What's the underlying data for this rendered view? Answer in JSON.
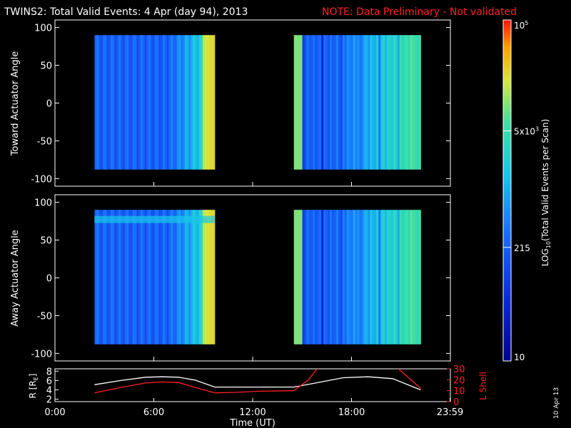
{
  "header": {
    "title": "TWINS2: Total Valid Events:  4 Apr (day  94), 2013",
    "note": "NOTE: Data Preliminary - Not validated",
    "note_color": "#ff2020"
  },
  "colorbar": {
    "label_main": "LOG",
    "label_sub": "10",
    "label_rest": "(Total Valid Events per Scan)",
    "ticks": [
      {
        "text": "10",
        "value": 10
      },
      {
        "text": "215",
        "value": 215
      },
      {
        "text": "5x10",
        "sup": "3",
        "value": 5000
      },
      {
        "text": "10",
        "sup": "5",
        "value": 100000
      }
    ],
    "range": [
      10,
      100000
    ],
    "scale": "log"
  },
  "chart_data": [
    {
      "type": "heatmap",
      "name": "toward",
      "ylabel": "Toward Actuator Angle",
      "ylim": [
        -110,
        110
      ],
      "yticks": [
        -100,
        -50,
        0,
        50,
        100
      ],
      "xlim_hours": [
        0,
        24
      ],
      "data_blocks_hours": [
        [
          2.4,
          9.7
        ],
        [
          14.5,
          22.2
        ]
      ],
      "angle_range": [
        -88,
        90
      ],
      "color_scale": "log",
      "color_range": [
        10,
        100000
      ]
    },
    {
      "type": "heatmap",
      "name": "away",
      "ylabel": "Away Actuator Angle",
      "ylim": [
        -110,
        110
      ],
      "yticks": [
        -100,
        -50,
        0,
        50,
        100
      ],
      "xlim_hours": [
        0,
        24
      ],
      "data_blocks_hours": [
        [
          2.4,
          9.7
        ],
        [
          14.5,
          22.2
        ]
      ],
      "angle_range": [
        -88,
        90
      ],
      "color_scale": "log",
      "color_range": [
        10,
        100000
      ]
    },
    {
      "type": "line",
      "name": "orbit",
      "xlabel": "Time (UT)",
      "xticks": [
        {
          "label": "0:00",
          "hour": 0
        },
        {
          "label": "6:00",
          "hour": 6
        },
        {
          "label": "12:00",
          "hour": 12
        },
        {
          "label": "18:00",
          "hour": 18
        },
        {
          "label": "23:59",
          "hour": 23.98
        }
      ],
      "y_left_label_main": "R [R",
      "y_left_label_sub": "E",
      "y_left_label_end": "]",
      "y_left_ticks": [
        2,
        4,
        6,
        8
      ],
      "y_left_lim": [
        1.5,
        8.5
      ],
      "y_right_label": "L Shell",
      "y_right_ticks": [
        0,
        10,
        20,
        30
      ],
      "y_right_lim": [
        0,
        30
      ],
      "series": [
        {
          "axis": "left",
          "color": "#ffffff",
          "x": [
            2.4,
            4,
            5.5,
            6.5,
            7.5,
            8.5,
            9.7,
            11,
            12.5,
            14.5,
            16,
            17.5,
            19,
            20.5,
            22.2
          ],
          "y": [
            5.1,
            6.0,
            6.7,
            6.8,
            6.7,
            6.1,
            4.6,
            4.6,
            4.6,
            4.6,
            5.6,
            6.6,
            6.8,
            6.4,
            4.0
          ]
        },
        {
          "axis": "right",
          "color": "#ff2020",
          "x": [
            2.4,
            4,
            5.5,
            6.5,
            7.5,
            8.5,
            9.7,
            11,
            12.5,
            14.5,
            15.4,
            16,
            20.7,
            22.2
          ],
          "y": [
            8,
            13,
            17,
            18,
            17.5,
            13,
            8,
            8.5,
            9.5,
            10,
            20,
            32,
            32,
            12
          ]
        }
      ]
    }
  ],
  "footer": {
    "date_stamp": "10 Apr 13"
  }
}
